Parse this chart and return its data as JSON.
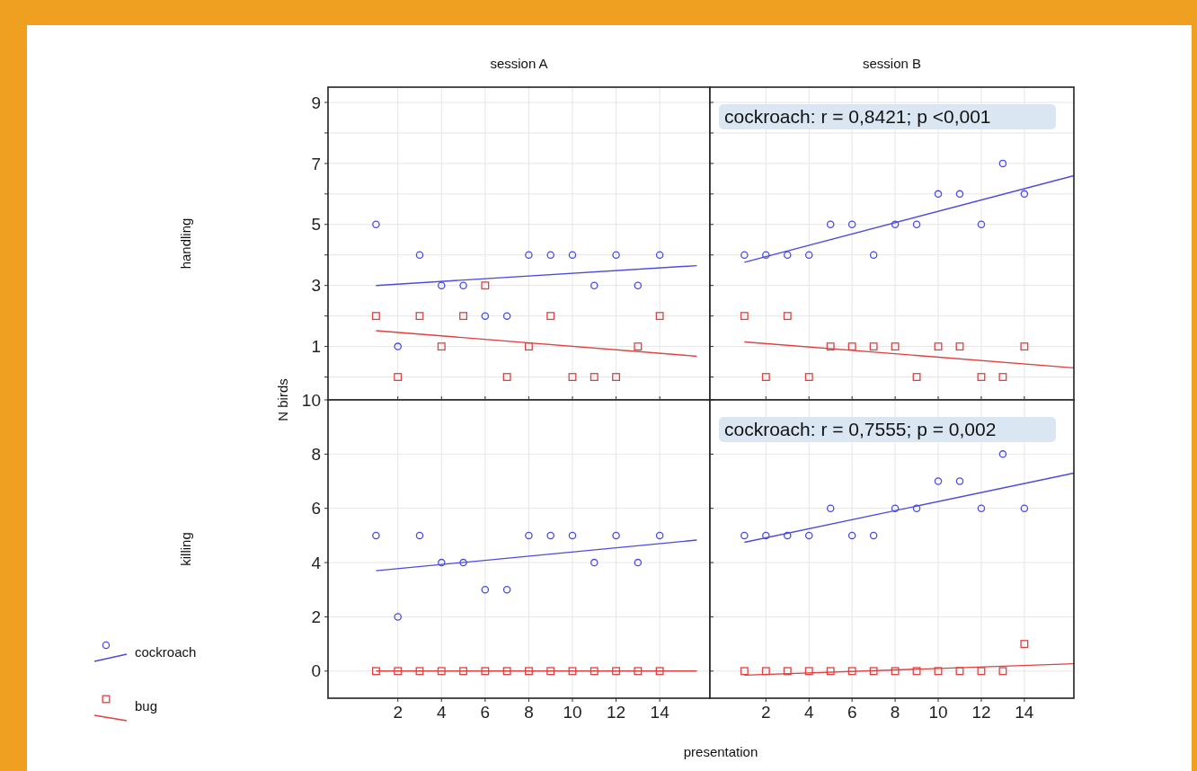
{
  "chart_data": [
    {
      "type": "scatter",
      "title": "session A",
      "ylabel": "handling",
      "annotations": [
        "N birds"
      ],
      "x": [
        1,
        2,
        3,
        4,
        5,
        6,
        7,
        8,
        9,
        10,
        11,
        12,
        13,
        14
      ],
      "xlim": [
        -1.2,
        16.3
      ],
      "ylim": [
        -0.75,
        9.5
      ],
      "xticks": [
        2,
        4,
        6,
        8,
        10,
        12,
        14
      ],
      "yticks": [
        {
          "value": 0,
          "label": null
        },
        1,
        {
          "value": 2,
          "label": null
        },
        3,
        {
          "value": 4,
          "label": null
        },
        5,
        {
          "value": 6,
          "label": null
        },
        7,
        {
          "value": 8,
          "label": null
        },
        9
      ],
      "tick_labels": "y",
      "grid": true,
      "legend": false,
      "series": [
        {
          "type": "scatter",
          "marker": "circle",
          "color": "#4b4be0",
          "values": [
            5,
            1,
            4,
            3,
            3,
            2,
            2,
            4,
            4,
            4,
            3,
            4,
            3,
            4
          ]
        },
        {
          "type": "scatter",
          "marker": "square",
          "color": "#e04040",
          "values": [
            2,
            0,
            2,
            1,
            2,
            3,
            0,
            1,
            2,
            0,
            0,
            0,
            1,
            2
          ]
        },
        {
          "type": "line",
          "color": "#4b4be0",
          "x": [
            1,
            15.7
          ],
          "values": [
            3.0,
            3.65
          ]
        },
        {
          "type": "line",
          "color": "#e04040",
          "x": [
            1,
            15.7
          ],
          "values": [
            1.52,
            0.68
          ]
        }
      ]
    },
    {
      "type": "scatter",
      "title": "session B",
      "annotations": [
        "cockroach: r = 0,8421; p <0,001"
      ],
      "x": [
        1,
        2,
        3,
        4,
        5,
        6,
        7,
        8,
        9,
        10,
        11,
        12,
        13,
        14
      ],
      "xlim": [
        -0.6,
        16.3
      ],
      "ylim": [
        -0.75,
        9.5
      ],
      "xticks": [
        2,
        4,
        6,
        8,
        10,
        12,
        14
      ],
      "yticks": [
        {
          "value": 0,
          "label": null
        },
        1,
        {
          "value": 2,
          "label": null
        },
        3,
        {
          "value": 4,
          "label": null
        },
        5,
        {
          "value": 6,
          "label": null
        },
        7,
        {
          "value": 8,
          "label": null
        },
        9
      ],
      "tick_labels": false,
      "grid": true,
      "legend": false,
      "series": [
        {
          "type": "scatter",
          "marker": "circle",
          "color": "#4b4be0",
          "values": [
            4,
            4,
            4,
            4,
            5,
            5,
            4,
            5,
            5,
            6,
            6,
            5,
            7,
            6
          ]
        },
        {
          "type": "scatter",
          "marker": "square",
          "color": "#e04040",
          "values": [
            2,
            0,
            2,
            0,
            1,
            1,
            1,
            1,
            0,
            1,
            1,
            0,
            0,
            1
          ]
        },
        {
          "type": "line",
          "color": "#4b4be0",
          "x": [
            1,
            16.3
          ],
          "values": [
            3.76,
            6.6
          ]
        },
        {
          "type": "line",
          "color": "#e04040",
          "x": [
            1,
            16.3
          ],
          "values": [
            1.15,
            0.3
          ]
        }
      ]
    },
    {
      "type": "scatter",
      "ylabel": "killing",
      "xlabel": "presentation",
      "x": [
        1,
        2,
        3,
        4,
        5,
        6,
        7,
        8,
        9,
        10,
        11,
        12,
        13,
        14
      ],
      "xlim": [
        -1.2,
        16.3
      ],
      "ylim": [
        -1,
        10
      ],
      "xticks": [
        2,
        4,
        6,
        8,
        10,
        12,
        14
      ],
      "yticks": [
        0,
        2,
        4,
        6,
        8,
        10
      ],
      "grid": true,
      "legend": "bottom left",
      "series": [
        {
          "type": "scatter",
          "name": "cockroach",
          "marker": "circle",
          "color": "#4b4be0",
          "values": [
            5,
            2,
            5,
            4,
            4,
            3,
            3,
            5,
            5,
            5,
            4,
            5,
            4,
            5
          ]
        },
        {
          "type": "scatter",
          "name": "bug",
          "marker": "square",
          "color": "#e04040",
          "values": [
            0,
            0,
            0,
            0,
            0,
            0,
            0,
            0,
            0,
            0,
            0,
            0,
            0,
            0
          ]
        },
        {
          "type": "line",
          "color": "#4b4be0",
          "x": [
            1,
            15.7
          ],
          "values": [
            3.7,
            4.83
          ]
        },
        {
          "type": "line",
          "color": "#e04040",
          "x": [
            1,
            15.7
          ],
          "values": [
            0,
            0
          ]
        }
      ]
    },
    {
      "type": "scatter",
      "annotations": [
        "cockroach: r = 0,7555; p = 0,002"
      ],
      "x": [
        1,
        2,
        3,
        4,
        5,
        6,
        7,
        8,
        9,
        10,
        11,
        12,
        13,
        14
      ],
      "xlim": [
        -0.6,
        16.3
      ],
      "ylim": [
        -1,
        10
      ],
      "xticks": [
        2,
        4,
        6,
        8,
        10,
        12,
        14
      ],
      "yticks": [
        {
          "value": 0,
          "label": null
        },
        {
          "value": 2,
          "label": null
        },
        {
          "value": 4,
          "label": null
        },
        {
          "value": 6,
          "label": null
        },
        {
          "value": 8,
          "label": null
        },
        {
          "value": 10,
          "label": null
        }
      ],
      "tick_labels": "x",
      "grid": true,
      "legend": false,
      "series": [
        {
          "type": "scatter",
          "marker": "circle",
          "color": "#4b4be0",
          "values": [
            5,
            5,
            5,
            5,
            6,
            5,
            5,
            6,
            6,
            7,
            7,
            6,
            8,
            6
          ]
        },
        {
          "type": "scatter",
          "marker": "square",
          "color": "#e04040",
          "values": [
            0,
            0,
            0,
            0,
            0,
            0,
            0,
            0,
            0,
            0,
            0,
            0,
            0,
            1
          ]
        },
        {
          "type": "line",
          "color": "#4b4be0",
          "x": [
            1,
            16.3
          ],
          "values": [
            4.75,
            7.3
          ]
        },
        {
          "type": "line",
          "color": "#e04040",
          "x": [
            1,
            16.3
          ],
          "values": [
            -0.15,
            0.27
          ]
        }
      ]
    }
  ]
}
